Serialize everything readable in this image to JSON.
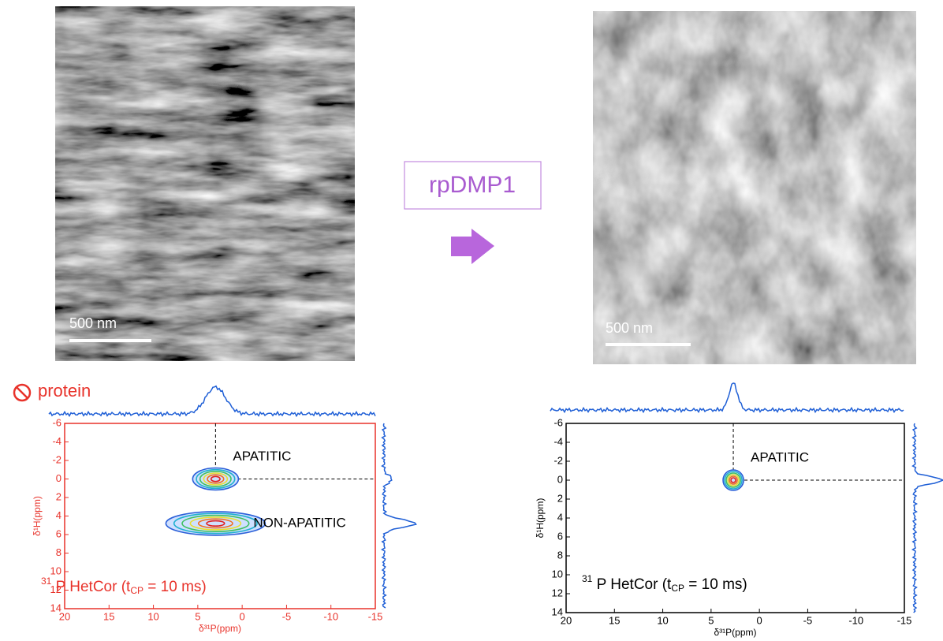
{
  "micrographs": [
    {
      "scale_bar": "500 nm"
    },
    {
      "scale_bar": "500 nm"
    }
  ],
  "treatment": "rpDMP1",
  "chart_data": [
    {
      "type": "contour",
      "title": "protein",
      "color": "#e8322a",
      "xlabel": "δ³¹P(ppm)",
      "ylabel": "δ¹H(ppm)",
      "xlim": [
        20,
        -15
      ],
      "ylim": [
        -6,
        14
      ],
      "xticks": [
        20,
        15,
        10,
        5,
        0,
        -5,
        -10,
        -15
      ],
      "yticks": [
        -6,
        -4,
        -2,
        0,
        2,
        4,
        6,
        8,
        10,
        12,
        14
      ],
      "peaks": [
        {
          "label": "APATITIC",
          "x": 3,
          "y": 0
        },
        {
          "label": "NON-APATITIC",
          "x": 3,
          "y": 4.8
        }
      ],
      "experiment": [
        "31",
        " P HetCor (t",
        "CP",
        " = 10 ms)"
      ]
    },
    {
      "type": "contour",
      "color": "#000000",
      "xlabel": "δ³¹P(ppm)",
      "ylabel": "δ¹H(ppm)",
      "xlim": [
        20,
        -15
      ],
      "ylim": [
        -6,
        14
      ],
      "xticks": [
        20,
        15,
        10,
        5,
        0,
        -5,
        -10,
        -15
      ],
      "yticks": [
        -6,
        -4,
        -2,
        0,
        2,
        4,
        6,
        8,
        10,
        12,
        14
      ],
      "peaks": [
        {
          "label": "APATITIC",
          "x": 2.7,
          "y": 0
        }
      ],
      "experiment": [
        "31",
        " P HetCor (t",
        "CP",
        " = 10 ms)"
      ]
    }
  ]
}
